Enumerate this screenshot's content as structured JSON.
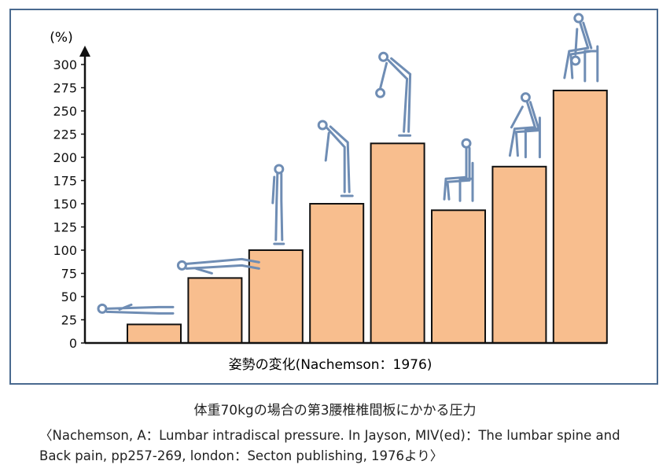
{
  "chart_data": {
    "type": "bar",
    "y_unit": "(%)",
    "xlabel": "姿勢の変化(Nachemson：1976)",
    "ylim": [
      0,
      300
    ],
    "yticks": [
      0,
      25,
      50,
      75,
      100,
      125,
      150,
      175,
      200,
      225,
      250,
      275,
      300
    ],
    "values": [
      20,
      70,
      100,
      150,
      215,
      143,
      190,
      272
    ],
    "postures": [
      "lying-supine-icon",
      "lying-side-icon",
      "standing-icon",
      "standing-bent-forward-icon",
      "standing-lifting-weight-icon",
      "sitting-upright-icon",
      "sitting-bent-forward-icon",
      "sitting-lifting-weight-icon"
    ],
    "bar_color": "#f8be8e",
    "bar_edge": "#111111",
    "figure_color": "#6f8db4"
  },
  "caption": "体重70kgの場合の第3腰椎椎間板にかかる圧力",
  "reference_line1": "〈Nachemson, A：Lumbar intradiscal pressure. In Jayson, MIV(ed)：The lumbar spine and",
  "reference_line2": "Back pain, pp257-269, london：Secton publishing, 1976より〉",
  "frame_color": "#4a6a8f"
}
